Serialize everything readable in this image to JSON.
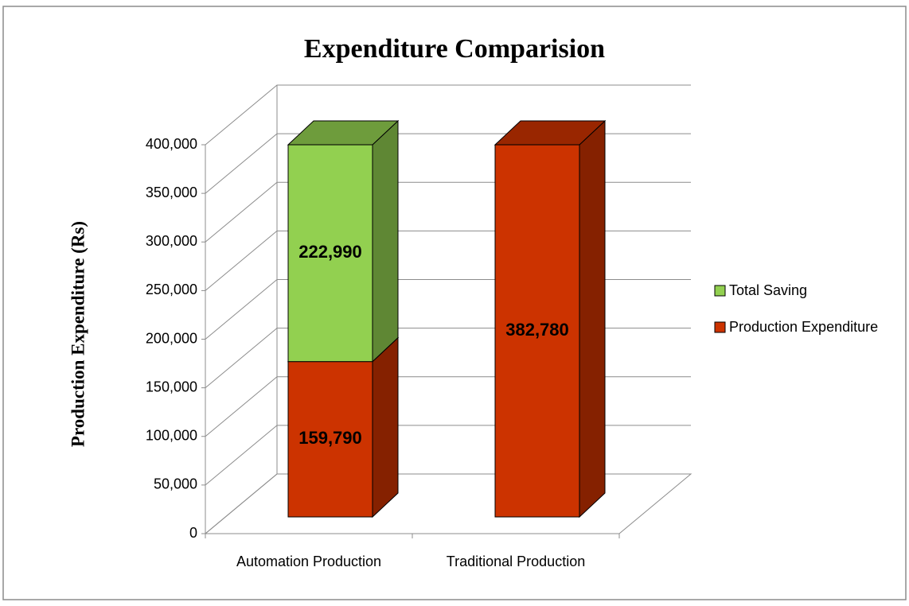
{
  "chart_data": {
    "type": "bar3d_stacked",
    "title": "Expenditure Comparision",
    "y_label": "Production Expenditure (Rs)",
    "categories": [
      "Automation Production",
      "Traditional Production"
    ],
    "series": [
      {
        "name": "Production Expenditure",
        "color": "#cc3300",
        "values": [
          159790,
          382780
        ],
        "value_labels": [
          "159,790",
          "382,780"
        ]
      },
      {
        "name": "Total Saving",
        "color": "#92d050",
        "values": [
          222990,
          null
        ],
        "value_labels": [
          "222,990",
          null
        ]
      }
    ],
    "ylim": [
      0,
      400000
    ],
    "yticks": [
      0,
      {
        "value": 50000,
        "label": "50,000"
      },
      {
        "value": 100000,
        "label": "100,000"
      },
      {
        "value": 150000,
        "label": "150,000"
      },
      {
        "value": 200000,
        "label": "200,000"
      },
      {
        "value": 250000,
        "label": "250,000"
      },
      {
        "value": 300000,
        "label": "300,000"
      },
      {
        "value": 350000,
        "label": "350,000"
      },
      {
        "value": 400000,
        "label": "400,000"
      }
    ],
    "grid": true,
    "legend": "right"
  }
}
